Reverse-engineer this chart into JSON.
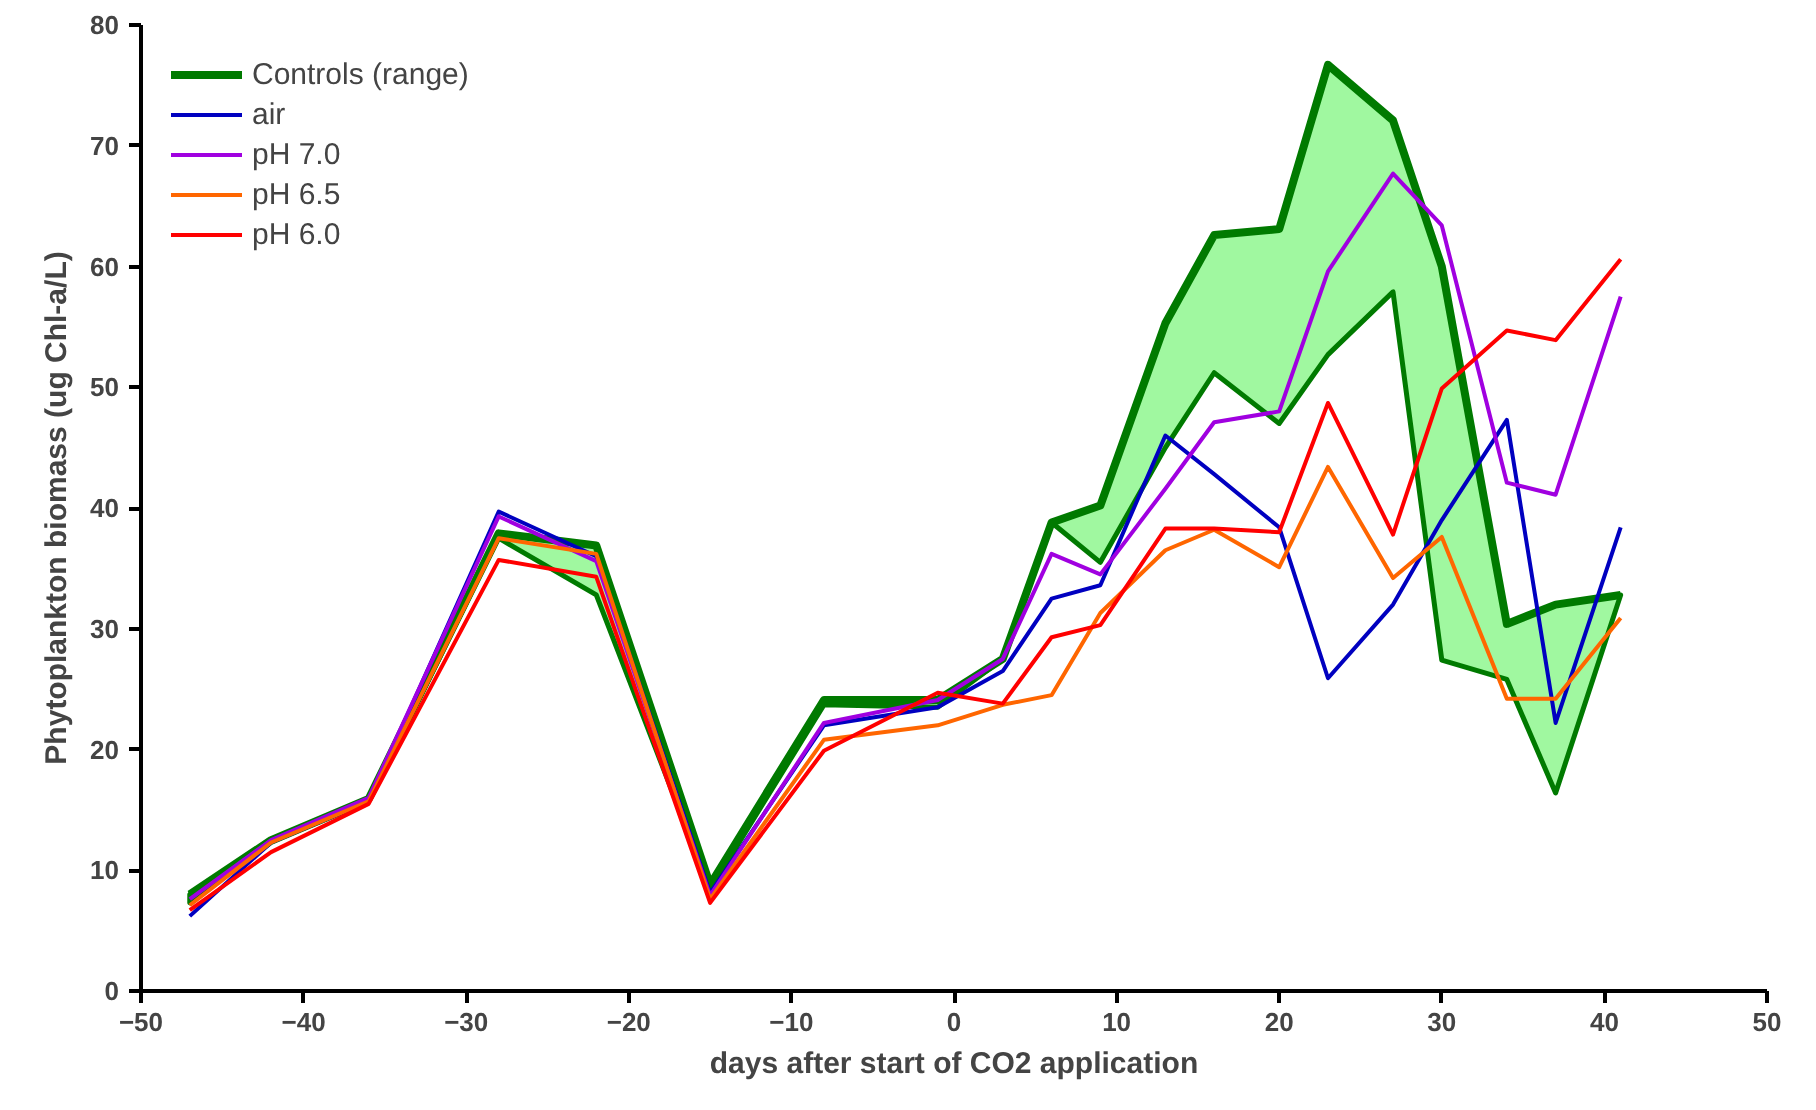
{
  "chart_data": {
    "type": "line",
    "xlabel": "days after start of CO2 application",
    "ylabel": "Phytoplankton biomass (ug Chl-a/L)",
    "x": [
      -47,
      -42,
      -36,
      -28,
      -22,
      -15,
      -8,
      -1,
      3,
      6,
      9,
      13,
      16,
      20,
      23,
      27,
      30,
      34,
      37,
      41
    ],
    "series": [
      {
        "name": "Controls (range)",
        "color": "#007a00",
        "values": [
          8.0,
          12.5,
          15.9,
          37.9,
          36.9,
          8.8,
          24.1,
          24.1,
          27.5,
          38.8,
          40.2,
          55.3,
          62.6,
          63.1,
          76.7,
          72.1,
          60.0,
          30.4,
          32.0,
          32.8
        ],
        "lower": [
          7.3,
          12.3,
          15.7,
          37.5,
          32.8,
          8.4,
          23.7,
          23.5,
          27.5,
          38.8,
          35.5,
          45.0,
          51.2,
          47.0,
          52.7,
          57.9,
          27.4,
          25.8,
          16.4,
          32.8
        ],
        "upper": [
          8.0,
          12.5,
          15.9,
          37.9,
          36.9,
          8.8,
          24.1,
          24.1,
          27.5,
          38.8,
          40.2,
          55.3,
          62.6,
          63.1,
          76.7,
          72.1,
          60.0,
          30.4,
          32.0,
          32.8
        ]
      },
      {
        "name": "air",
        "color": "#0000c0",
        "values": [
          6.2,
          12.3,
          15.7,
          39.7,
          36.0,
          8.1,
          22.0,
          23.5,
          26.5,
          32.5,
          33.6,
          46.0,
          42.8,
          38.4,
          25.9,
          32.0,
          39.0,
          47.3,
          22.2,
          38.4
        ]
      },
      {
        "name": "pH 7.0",
        "color": "#a000e0",
        "values": [
          7.6,
          12.5,
          16.0,
          39.3,
          35.6,
          7.9,
          22.2,
          24.1,
          27.5,
          36.2,
          34.5,
          41.6,
          47.1,
          48.0,
          59.6,
          67.7,
          63.4,
          42.1,
          41.1,
          57.5
        ]
      },
      {
        "name": "pH 6.5",
        "color": "#ff6600",
        "values": [
          7.1,
          12.3,
          15.7,
          37.5,
          36.2,
          7.6,
          20.8,
          22.0,
          23.7,
          24.5,
          31.3,
          36.5,
          38.2,
          35.1,
          43.4,
          34.2,
          37.6,
          24.2,
          24.2,
          30.9
        ]
      },
      {
        "name": "pH 6.0",
        "color": "#ff0000",
        "values": [
          6.7,
          11.5,
          15.5,
          35.7,
          34.3,
          7.3,
          19.9,
          24.7,
          23.8,
          29.3,
          30.3,
          38.3,
          38.3,
          38.0,
          48.7,
          37.8,
          49.9,
          54.7,
          53.9,
          60.6
        ]
      }
    ],
    "xlim": [
      -50,
      50
    ],
    "xticks": [
      -50,
      -40,
      -30,
      -20,
      -10,
      0,
      10,
      20,
      30,
      40,
      50
    ],
    "ylim": [
      0,
      80
    ],
    "yticks": [
      0,
      10,
      20,
      30,
      40,
      50,
      60,
      70,
      80
    ],
    "grid": false,
    "legend": "top left",
    "line_style": "solid"
  }
}
